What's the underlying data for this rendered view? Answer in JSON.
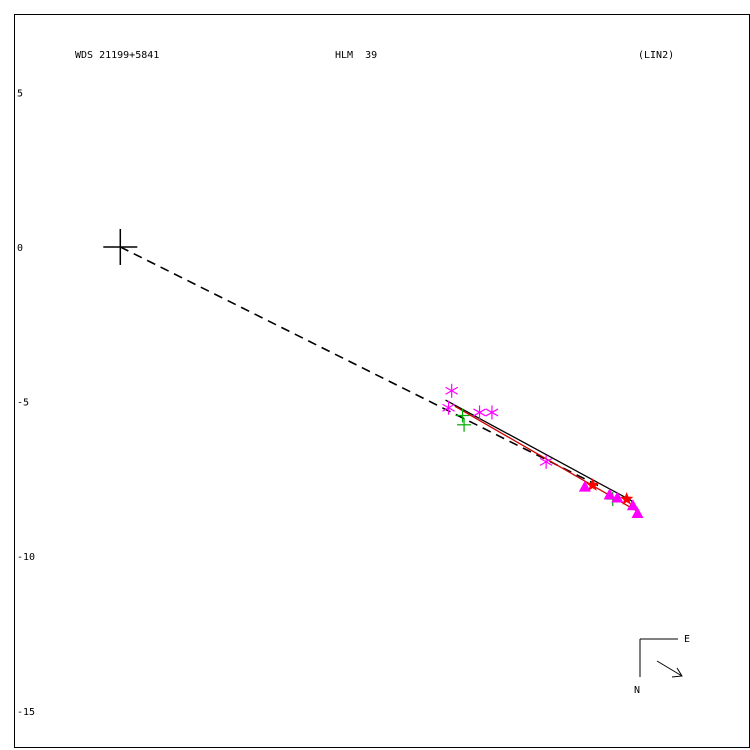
{
  "chart_data": {
    "type": "scatter",
    "header": {
      "left": "WDS 21199+5841",
      "center": "HLM  39",
      "right": "(LIN2)"
    },
    "y_ticks": [
      5,
      0,
      -5,
      -10,
      -15
    ],
    "ylim": [
      -16.2,
      7.5
    ],
    "xlim": [
      -3.4,
      20.3
    ],
    "primary": {
      "x": 0,
      "y": 0,
      "symbol": "cross"
    },
    "lines": [
      {
        "name": "dashed",
        "style": "dashed",
        "points": [
          [
            0,
            0
          ],
          [
            15.6,
            -7.8
          ]
        ]
      },
      {
        "name": "orbit-black",
        "style": "solid",
        "color": "#000000",
        "points": [
          [
            10.5,
            -4.95
          ],
          [
            15.2,
            -7.5
          ],
          [
            16.5,
            -8.2
          ],
          [
            16.75,
            -8.65
          ]
        ]
      },
      {
        "name": "orbit-red",
        "style": "solid",
        "color": "#cc0000",
        "points": [
          [
            10.8,
            -5.15
          ],
          [
            16.7,
            -8.55
          ]
        ]
      }
    ],
    "series": [
      {
        "marker": "asterisk",
        "color": "#ff00ff",
        "points": [
          [
            10.7,
            -4.65
          ],
          [
            10.6,
            -5.2
          ],
          [
            11.6,
            -5.35
          ],
          [
            12.0,
            -5.35
          ],
          [
            13.75,
            -6.95
          ]
        ]
      },
      {
        "marker": "plus",
        "color": "#00aa00",
        "points": [
          [
            11.05,
            -5.45
          ],
          [
            11.1,
            -5.75
          ],
          [
            15.9,
            -8.15
          ]
        ]
      },
      {
        "marker": "triangle",
        "color": "#ff00ff",
        "points": [
          [
            15.0,
            -7.75
          ],
          [
            15.8,
            -8.0
          ],
          [
            16.05,
            -8.1
          ],
          [
            16.55,
            -8.35
          ],
          [
            16.7,
            -8.6
          ]
        ]
      },
      {
        "marker": "star",
        "color": "#ff0000",
        "points": [
          [
            15.25,
            -7.7
          ],
          [
            16.35,
            -8.15
          ]
        ]
      }
    ],
    "compass": {
      "east": "E",
      "north": "N"
    }
  }
}
